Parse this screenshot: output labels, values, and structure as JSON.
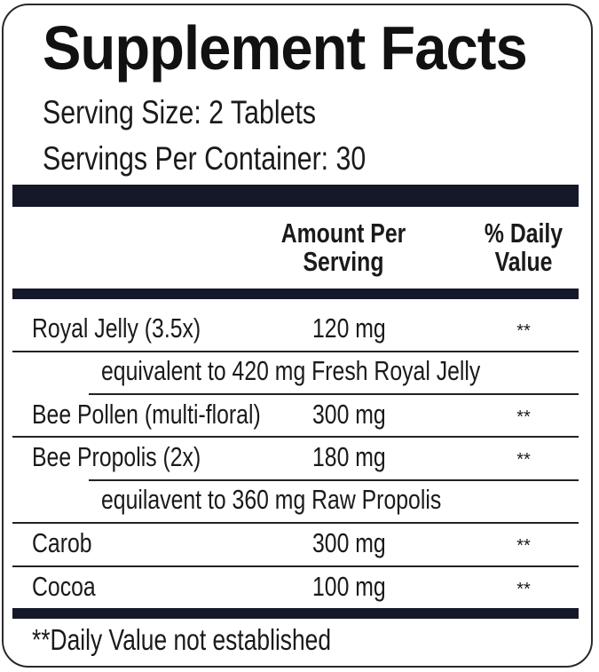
{
  "title": "Supplement Facts",
  "serving_size": "Serving Size: 2 Tablets",
  "servings_per_container": "Servings Per Container: 30",
  "headers": {
    "amount": "Amount Per",
    "amount2": "Serving",
    "dv": "% Daily",
    "dv2": "Value"
  },
  "rows": [
    {
      "name": "Royal Jelly (3.5x)",
      "amount": "120 mg",
      "dv": "**"
    },
    {
      "note": "equivalent to 420 mg Fresh Royal Jelly"
    },
    {
      "name": "Bee Pollen (multi-floral)",
      "amount": "300 mg",
      "dv": "**"
    },
    {
      "name": "Bee Propolis (2x)",
      "amount": "180 mg",
      "dv": "**"
    },
    {
      "note": "equilavent to 360 mg Raw Propolis"
    },
    {
      "name": "Carob",
      "amount": "300 mg",
      "dv": "**"
    },
    {
      "name": "Cocoa",
      "amount": "100 mg",
      "dv": "**"
    }
  ],
  "footnote": "**Daily Value not established",
  "colors": {
    "bar": "#151829"
  }
}
